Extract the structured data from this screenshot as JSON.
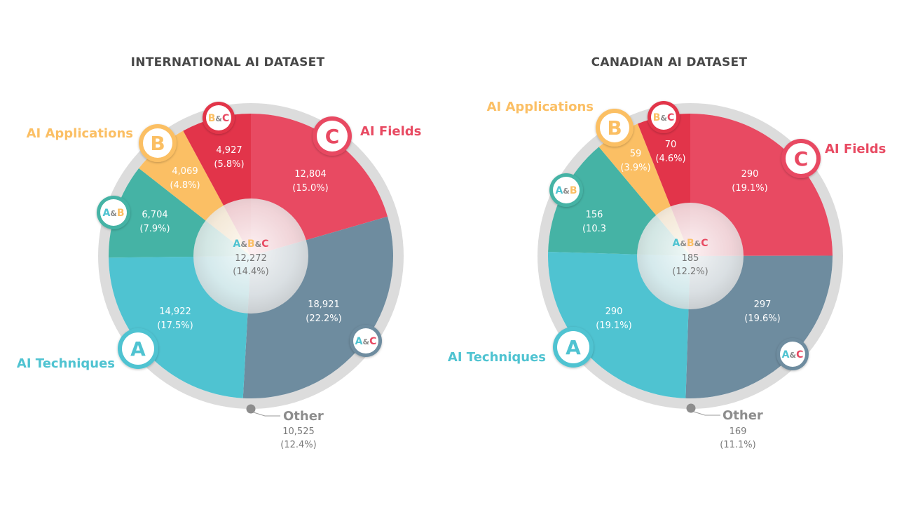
{
  "colors": {
    "A": "#4fc3d1",
    "B": "#fbbf64",
    "C": "#e84a62",
    "AB": "#45b3a5",
    "BC": "#e2344a",
    "AC": "#6e8c9f",
    "ring": "#dcdcdc",
    "other": "#8d8d8d",
    "title": "#474747"
  },
  "badges": {
    "A": "A",
    "B": "B",
    "C": "C",
    "amp": "&"
  },
  "chart_data": [
    {
      "type": "pie",
      "title": "INTERNATIONAL AI DATASET",
      "legend": {
        "A": "AI Techniques",
        "B": "AI Applications",
        "C": "AI Fields"
      },
      "slices": [
        {
          "key": "C",
          "value": 12804,
          "value_label": "12,804",
          "pct_label": "(15.0%)"
        },
        {
          "key": "AC",
          "value": 18921,
          "value_label": "18,921",
          "pct_label": "(22.2%)"
        },
        {
          "key": "A",
          "value": 14922,
          "value_label": "14,922",
          "pct_label": "(17.5%)"
        },
        {
          "key": "AB",
          "value": 6704,
          "value_label": "6,704",
          "pct_label": "(7.9%)"
        },
        {
          "key": "B",
          "value": 4069,
          "value_label": "4,069",
          "pct_label": "(4.8%)"
        },
        {
          "key": "BC",
          "value": 4927,
          "value_label": "4,927",
          "pct_label": "(5.8%)"
        }
      ],
      "center": {
        "key": "ABC",
        "value": 12272,
        "value_label": "12,272",
        "pct_label": "(14.4%)"
      },
      "other": {
        "label": "Other",
        "value": 10525,
        "value_label": "10,525",
        "pct_label": "(12.4%)"
      }
    },
    {
      "type": "pie",
      "title": "CANADIAN AI DATASET",
      "legend": {
        "A": "AI Techniques",
        "B": "AI Applications",
        "C": "AI Fields"
      },
      "slices": [
        {
          "key": "C",
          "value": 290,
          "value_label": "290",
          "pct_label": "(19.1%)"
        },
        {
          "key": "AC",
          "value": 297,
          "value_label": "297",
          "pct_label": "(19.6%)"
        },
        {
          "key": "A",
          "value": 290,
          "value_label": "290",
          "pct_label": "(19.1%)"
        },
        {
          "key": "AB",
          "value": 156,
          "value_label": "156",
          "pct_label": "(10.3"
        },
        {
          "key": "B",
          "value": 59,
          "value_label": "59",
          "pct_label": "(3.9%)"
        },
        {
          "key": "BC",
          "value": 70,
          "value_label": "70",
          "pct_label": "(4.6%)"
        }
      ],
      "center": {
        "key": "ABC",
        "value": 185,
        "value_label": "185",
        "pct_label": "(12.2%)"
      },
      "other": {
        "label": "Other",
        "value": 169,
        "value_label": "169",
        "pct_label": "(11.1%)"
      }
    }
  ]
}
